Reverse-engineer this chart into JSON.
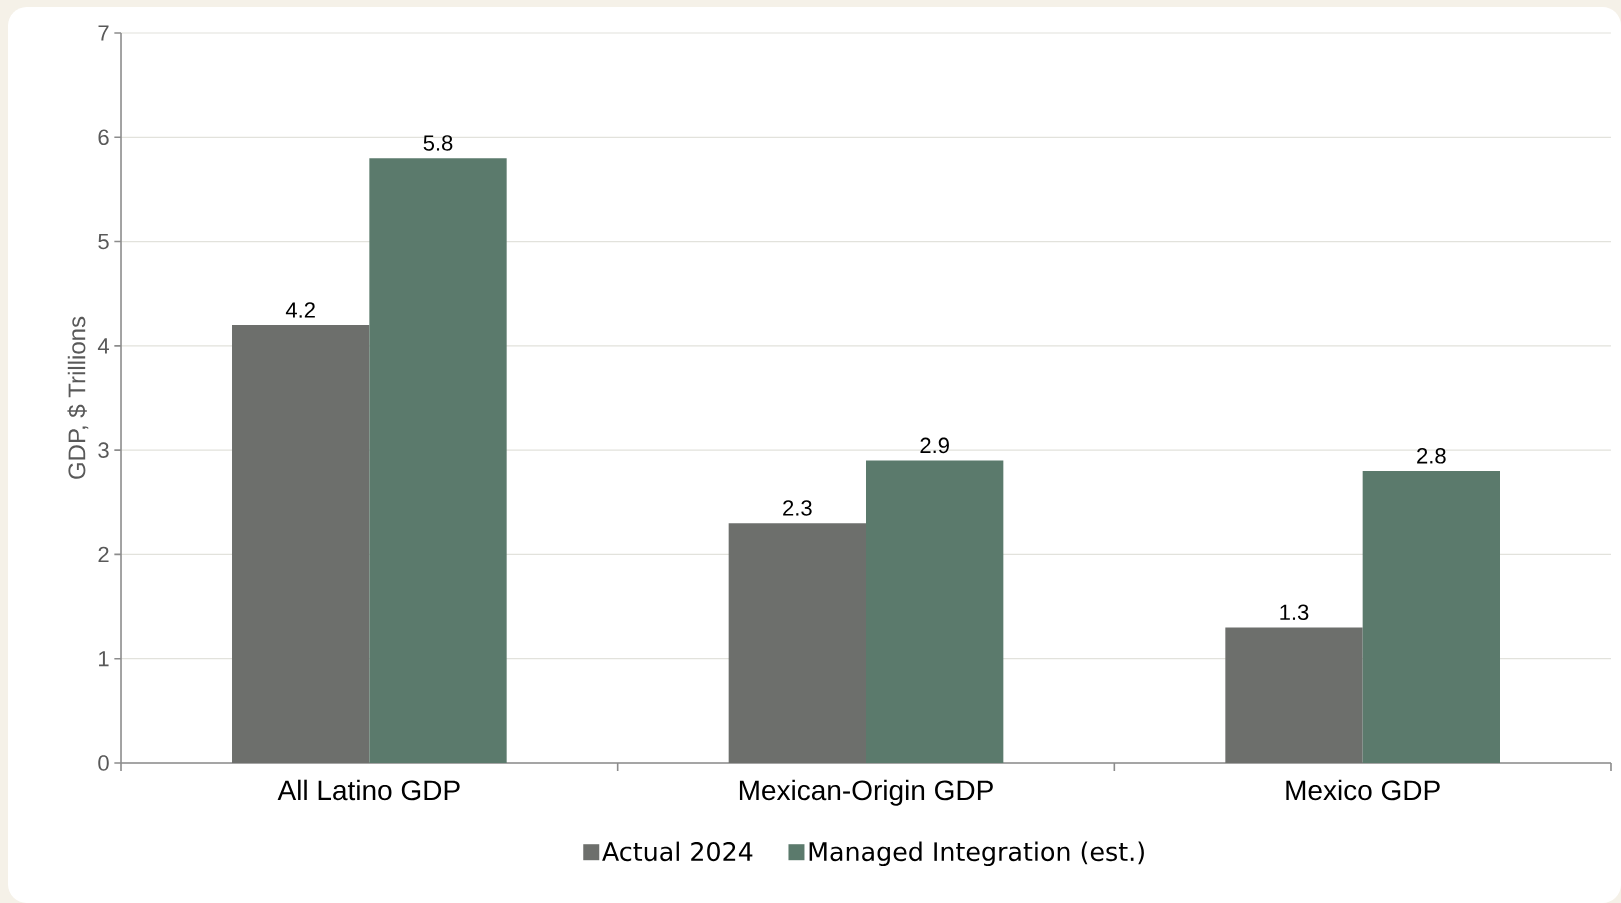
{
  "chart_data": {
    "type": "bar",
    "ylabel": "GDP, $ Trillions",
    "categories": [
      "All Latino GDP",
      "Mexican-Origin GDP",
      "Mexico GDP"
    ],
    "series": [
      {
        "name": "Actual 2024",
        "color": "#6d6f6c",
        "values": [
          4.2,
          2.3,
          1.3
        ]
      },
      {
        "name": "Managed Integration (est.)",
        "color": "#5b7a6c",
        "values": [
          5.8,
          2.9,
          2.8
        ]
      }
    ],
    "ylim": [
      0,
      7
    ],
    "yticks": [
      0,
      1,
      2,
      3,
      4,
      5,
      6,
      7
    ],
    "grid": "y",
    "legend": "bottom",
    "data_labels": true
  }
}
